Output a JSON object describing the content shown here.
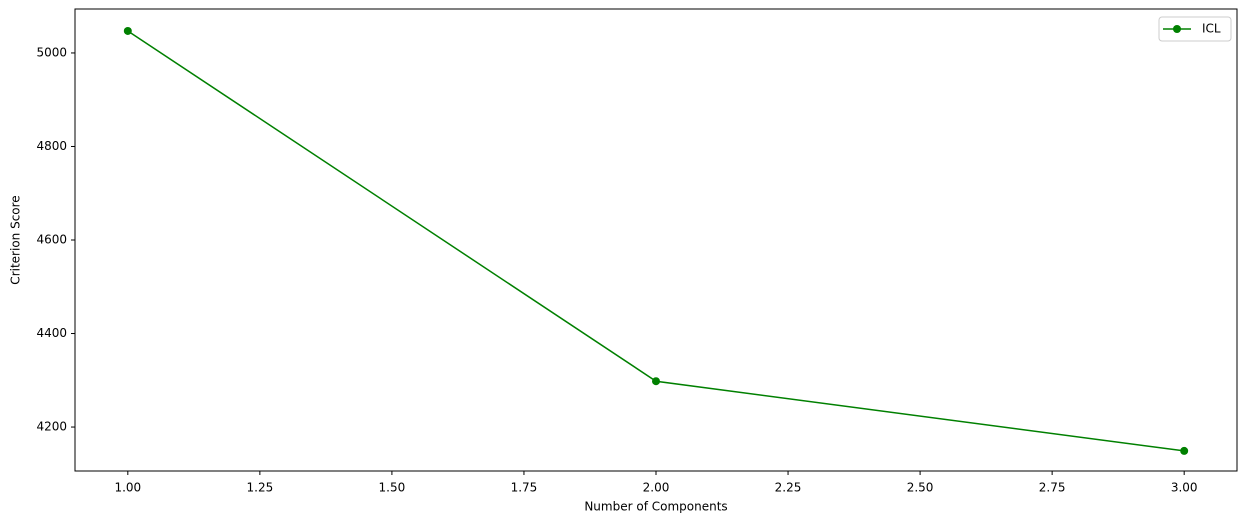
{
  "chart_data": {
    "type": "line",
    "xlabel": "Number of Components",
    "ylabel": "Criterion Score",
    "x": [
      1,
      2,
      3
    ],
    "series": [
      {
        "name": "ICL",
        "color": "#008000",
        "values": [
          5047,
          4298,
          4149
        ]
      }
    ],
    "xlim": [
      0.9,
      3.1
    ],
    "xticks": [
      {
        "value": 1,
        "label": "1.00"
      },
      {
        "value": 1.25,
        "label": "1.25"
      },
      {
        "value": 1.5,
        "label": "1.50"
      },
      {
        "value": 1.75,
        "label": "1.75"
      },
      {
        "value": 2,
        "label": "2.00"
      },
      {
        "value": 2.25,
        "label": "2.25"
      },
      {
        "value": 2.5,
        "label": "2.50"
      },
      {
        "value": 2.75,
        "label": "2.75"
      },
      {
        "value": 3,
        "label": "3.00"
      }
    ],
    "ylim": [
      4106,
      5094
    ],
    "yticks": [
      4200,
      4400,
      4600,
      4800,
      5000
    ],
    "grid": false,
    "legend": "upper right",
    "marker": "o"
  }
}
